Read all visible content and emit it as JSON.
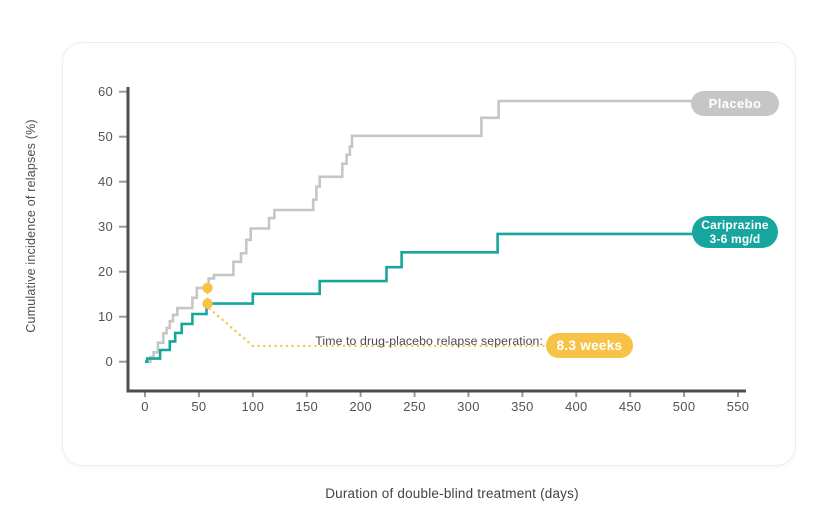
{
  "chart_data": {
    "type": "line",
    "variant": "kaplan_meier_step",
    "title": "",
    "xlabel": "Duration of double-blind treatment (days)",
    "ylabel": "Cumulative incidence of relapses (%)",
    "xlim": [
      0,
      550
    ],
    "ylim": [
      0,
      60
    ],
    "x_ticks": [
      0,
      50,
      100,
      150,
      200,
      250,
      300,
      350,
      400,
      450,
      500,
      550
    ],
    "y_ticks": [
      0,
      10,
      20,
      30,
      40,
      50,
      60
    ],
    "grid": false,
    "legend_position": "end-of-line-pills-right",
    "series": [
      {
        "name": "Placebo",
        "color": "#c6c6c6",
        "end_day": 507,
        "points": [
          [
            0,
            0
          ],
          [
            5,
            1.0
          ],
          [
            8,
            2.1
          ],
          [
            12,
            4.2
          ],
          [
            17,
            6.3
          ],
          [
            20,
            7.5
          ],
          [
            23,
            9.0
          ],
          [
            26,
            10.4
          ],
          [
            30,
            11.9
          ],
          [
            44,
            14.2
          ],
          [
            48,
            16.4
          ],
          [
            59,
            18.5
          ],
          [
            64,
            19.3
          ],
          [
            82,
            22.2
          ],
          [
            89,
            24.1
          ],
          [
            94,
            27.1
          ],
          [
            98,
            29.6
          ],
          [
            115,
            31.9
          ],
          [
            120,
            33.7
          ],
          [
            156,
            36.0
          ],
          [
            159,
            38.9
          ],
          [
            162,
            41.1
          ],
          [
            183,
            44.0
          ],
          [
            187,
            46.0
          ],
          [
            190,
            47.8
          ],
          [
            192,
            50.2
          ],
          [
            312,
            54.2
          ],
          [
            328,
            57.9
          ]
        ]
      },
      {
        "name": "Cariprazine 3-6 mg/d",
        "color": "#17a69d",
        "end_day": 508,
        "points": [
          [
            0,
            0
          ],
          [
            2,
            0.7
          ],
          [
            14,
            2.6
          ],
          [
            23,
            4.5
          ],
          [
            28,
            6.4
          ],
          [
            34,
            8.4
          ],
          [
            44,
            10.6
          ],
          [
            57,
            12.9
          ],
          [
            100,
            15.1
          ],
          [
            162,
            17.9
          ],
          [
            224,
            21.0
          ],
          [
            238,
            24.3
          ],
          [
            327,
            28.4
          ]
        ]
      }
    ],
    "markers": [
      {
        "series": "Placebo",
        "day": 58,
        "value": 16.4,
        "color": "#f6c346"
      },
      {
        "series": "Cariprazine 3-6 mg/d",
        "day": 58,
        "value": 12.9,
        "color": "#f6c346"
      }
    ],
    "annotation": {
      "label": "Time to drug-placebo relapse seperation:",
      "badge": "8.3 weeks",
      "color": "#f6c346",
      "leader_corner_day": 100,
      "leader_floor_value": 3.5
    }
  },
  "labels": {
    "placebo_pill": "Placebo",
    "cariprazine_pill_line1": "Cariprazine",
    "cariprazine_pill_line2": "3-6 mg/d"
  },
  "colors": {
    "teal": "#17a69d",
    "gray": "#c6c6c6",
    "yellow": "#f6c346",
    "axis": "#4d4d4f",
    "tick": "#98989a",
    "tick_text": "#545458",
    "text": "#4a4a4e",
    "card_border": "#ededed"
  }
}
